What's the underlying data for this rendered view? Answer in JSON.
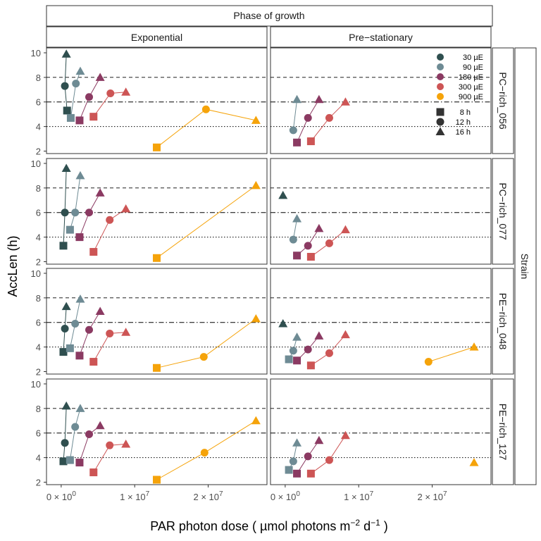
{
  "chart_data": {
    "type": "scatter",
    "xlabel_parts": {
      "pre": "PAR photon dose ( µmol photons  m",
      "exp1": "−2",
      "mid": "  d",
      "exp2": "−1",
      "post": " )"
    },
    "ylabel": "AccLen (h)",
    "facet_col_title": "Phase of growth",
    "facet_row_title": "Strain",
    "columns": [
      "Exponential",
      "Pre−stationary"
    ],
    "rows": [
      "PC−rich_056",
      "PC−rich_077",
      "PE−rich_048",
      "PE−rich_127"
    ],
    "xlim": [
      -2000000,
      28000000
    ],
    "ylim": [
      1.8,
      10.4
    ],
    "x_ticks": [
      0,
      10000000,
      20000000
    ],
    "x_tick_labels": [
      {
        "base": "0 × 10",
        "exp": "0"
      },
      {
        "base": "1 × 10",
        "exp": "7"
      },
      {
        "base": "2 × 10",
        "exp": "7"
      }
    ],
    "y_ticks": [
      2,
      4,
      6,
      8,
      10
    ],
    "reference_lines": [
      {
        "y": 8,
        "style": "dashed"
      },
      {
        "y": 6,
        "style": "dotdash"
      },
      {
        "y": 4,
        "style": "dotted"
      }
    ],
    "light_levels": [
      {
        "label": "30 µE",
        "color": "#2f4f4f"
      },
      {
        "label": "90 µE",
        "color": "#6e8b94"
      },
      {
        "label": "180 µE",
        "color": "#8b3a62"
      },
      {
        "label": "300 µE",
        "color": "#cd5555"
      },
      {
        "label": "900 µE",
        "color": "#f5a30a"
      }
    ],
    "photoperiods": [
      {
        "label": "8 h",
        "shape": "square"
      },
      {
        "label": "12 h",
        "shape": "circle"
      },
      {
        "label": "16 h",
        "shape": "triangle"
      }
    ],
    "legend_position": "top-right of first row, pre-stationary panel",
    "series": [
      {
        "row": 0,
        "col": 0,
        "points": [
          {
            "light": 0,
            "pp": 0,
            "x": 800000,
            "y": 5.3
          },
          {
            "light": 0,
            "pp": 1,
            "x": 500000,
            "y": 7.3
          },
          {
            "light": 0,
            "pp": 2,
            "x": 700000,
            "y": 9.9
          },
          {
            "light": 1,
            "pp": 0,
            "x": 1300000,
            "y": 4.7
          },
          {
            "light": 1,
            "pp": 1,
            "x": 2000000,
            "y": 7.5
          },
          {
            "light": 1,
            "pp": 2,
            "x": 2600000,
            "y": 8.5
          },
          {
            "light": 2,
            "pp": 0,
            "x": 2500000,
            "y": 4.5
          },
          {
            "light": 2,
            "pp": 1,
            "x": 3800000,
            "y": 6.4
          },
          {
            "light": 2,
            "pp": 2,
            "x": 5300000,
            "y": 8.0
          },
          {
            "light": 3,
            "pp": 0,
            "x": 4400000,
            "y": 4.8
          },
          {
            "light": 3,
            "pp": 1,
            "x": 6700000,
            "y": 6.7
          },
          {
            "light": 3,
            "pp": 2,
            "x": 8800000,
            "y": 6.8
          },
          {
            "light": 4,
            "pp": 0,
            "x": 13000000,
            "y": 2.3
          },
          {
            "light": 4,
            "pp": 1,
            "x": 19700000,
            "y": 5.4
          },
          {
            "light": 4,
            "pp": 2,
            "x": 26500000,
            "y": 4.5
          }
        ]
      },
      {
        "row": 0,
        "col": 1,
        "points": [
          {
            "light": 1,
            "pp": 1,
            "x": 1100000,
            "y": 3.7
          },
          {
            "light": 1,
            "pp": 2,
            "x": 1600000,
            "y": 6.2
          },
          {
            "light": 2,
            "pp": 0,
            "x": 1600000,
            "y": 2.7
          },
          {
            "light": 2,
            "pp": 1,
            "x": 3100000,
            "y": 4.7
          },
          {
            "light": 2,
            "pp": 2,
            "x": 4600000,
            "y": 6.2
          },
          {
            "light": 3,
            "pp": 0,
            "x": 3500000,
            "y": 2.8
          },
          {
            "light": 3,
            "pp": 1,
            "x": 6000000,
            "y": 4.7
          },
          {
            "light": 3,
            "pp": 2,
            "x": 8200000,
            "y": 6.0
          }
        ]
      },
      {
        "row": 1,
        "col": 0,
        "points": [
          {
            "light": 0,
            "pp": 0,
            "x": 300000,
            "y": 3.3
          },
          {
            "light": 0,
            "pp": 1,
            "x": 500000,
            "y": 6.0
          },
          {
            "light": 0,
            "pp": 2,
            "x": 700000,
            "y": 9.6
          },
          {
            "light": 1,
            "pp": 0,
            "x": 1200000,
            "y": 4.6
          },
          {
            "light": 1,
            "pp": 1,
            "x": 1900000,
            "y": 6.0
          },
          {
            "light": 1,
            "pp": 2,
            "x": 2600000,
            "y": 9.0
          },
          {
            "light": 2,
            "pp": 0,
            "x": 2500000,
            "y": 4.0
          },
          {
            "light": 2,
            "pp": 1,
            "x": 3800000,
            "y": 6.0
          },
          {
            "light": 2,
            "pp": 2,
            "x": 5300000,
            "y": 7.6
          },
          {
            "light": 3,
            "pp": 0,
            "x": 4400000,
            "y": 2.8
          },
          {
            "light": 3,
            "pp": 1,
            "x": 6600000,
            "y": 5.4
          },
          {
            "light": 3,
            "pp": 2,
            "x": 8800000,
            "y": 6.3
          },
          {
            "light": 4,
            "pp": 0,
            "x": 13000000,
            "y": 2.3
          },
          {
            "light": 4,
            "pp": 2,
            "x": 26500000,
            "y": 8.2
          }
        ]
      },
      {
        "row": 1,
        "col": 1,
        "points": [
          {
            "light": 0,
            "pp": 2,
            "x": -300000,
            "y": 7.4
          },
          {
            "light": 1,
            "pp": 1,
            "x": 1100000,
            "y": 3.8
          },
          {
            "light": 1,
            "pp": 2,
            "x": 1600000,
            "y": 5.5
          },
          {
            "light": 2,
            "pp": 0,
            "x": 1600000,
            "y": 2.5
          },
          {
            "light": 2,
            "pp": 1,
            "x": 3100000,
            "y": 3.3
          },
          {
            "light": 2,
            "pp": 2,
            "x": 4600000,
            "y": 4.7
          },
          {
            "light": 3,
            "pp": 0,
            "x": 3500000,
            "y": 2.4
          },
          {
            "light": 3,
            "pp": 1,
            "x": 6000000,
            "y": 3.5
          },
          {
            "light": 3,
            "pp": 2,
            "x": 8200000,
            "y": 4.6
          }
        ]
      },
      {
        "row": 2,
        "col": 0,
        "points": [
          {
            "light": 0,
            "pp": 0,
            "x": 300000,
            "y": 3.6
          },
          {
            "light": 0,
            "pp": 1,
            "x": 500000,
            "y": 5.5
          },
          {
            "light": 0,
            "pp": 2,
            "x": 700000,
            "y": 7.3
          },
          {
            "light": 1,
            "pp": 0,
            "x": 1200000,
            "y": 3.9
          },
          {
            "light": 1,
            "pp": 1,
            "x": 1900000,
            "y": 5.9
          },
          {
            "light": 1,
            "pp": 2,
            "x": 2600000,
            "y": 7.9
          },
          {
            "light": 2,
            "pp": 0,
            "x": 2500000,
            "y": 3.3
          },
          {
            "light": 2,
            "pp": 1,
            "x": 3800000,
            "y": 5.4
          },
          {
            "light": 2,
            "pp": 2,
            "x": 5300000,
            "y": 6.9
          },
          {
            "light": 3,
            "pp": 0,
            "x": 4400000,
            "y": 2.8
          },
          {
            "light": 3,
            "pp": 1,
            "x": 6600000,
            "y": 5.1
          },
          {
            "light": 3,
            "pp": 2,
            "x": 8800000,
            "y": 5.2
          },
          {
            "light": 4,
            "pp": 0,
            "x": 13000000,
            "y": 2.3
          },
          {
            "light": 4,
            "pp": 1,
            "x": 19400000,
            "y": 3.2
          },
          {
            "light": 4,
            "pp": 2,
            "x": 26500000,
            "y": 6.3
          }
        ]
      },
      {
        "row": 2,
        "col": 1,
        "points": [
          {
            "light": 0,
            "pp": 2,
            "x": -300000,
            "y": 5.9
          },
          {
            "light": 1,
            "pp": 0,
            "x": 500000,
            "y": 3.0
          },
          {
            "light": 1,
            "pp": 1,
            "x": 1100000,
            "y": 3.7
          },
          {
            "light": 1,
            "pp": 2,
            "x": 1600000,
            "y": 4.8
          },
          {
            "light": 2,
            "pp": 0,
            "x": 1600000,
            "y": 2.9
          },
          {
            "light": 2,
            "pp": 1,
            "x": 3100000,
            "y": 3.8
          },
          {
            "light": 2,
            "pp": 2,
            "x": 4600000,
            "y": 4.9
          },
          {
            "light": 3,
            "pp": 0,
            "x": 3500000,
            "y": 2.5
          },
          {
            "light": 3,
            "pp": 1,
            "x": 6000000,
            "y": 3.5
          },
          {
            "light": 3,
            "pp": 2,
            "x": 8200000,
            "y": 5.0
          },
          {
            "light": 4,
            "pp": 1,
            "x": 19500000,
            "y": 2.8
          },
          {
            "light": 4,
            "pp": 2,
            "x": 25700000,
            "y": 4.0
          }
        ]
      },
      {
        "row": 3,
        "col": 0,
        "points": [
          {
            "light": 0,
            "pp": 0,
            "x": 300000,
            "y": 3.7
          },
          {
            "light": 0,
            "pp": 1,
            "x": 500000,
            "y": 5.2
          },
          {
            "light": 0,
            "pp": 2,
            "x": 700000,
            "y": 8.2
          },
          {
            "light": 1,
            "pp": 0,
            "x": 1200000,
            "y": 3.8
          },
          {
            "light": 1,
            "pp": 1,
            "x": 1900000,
            "y": 6.5
          },
          {
            "light": 1,
            "pp": 2,
            "x": 2600000,
            "y": 8.0
          },
          {
            "light": 2,
            "pp": 0,
            "x": 2500000,
            "y": 3.6
          },
          {
            "light": 2,
            "pp": 1,
            "x": 3800000,
            "y": 5.9
          },
          {
            "light": 2,
            "pp": 2,
            "x": 5300000,
            "y": 6.6
          },
          {
            "light": 3,
            "pp": 0,
            "x": 4400000,
            "y": 2.8
          },
          {
            "light": 3,
            "pp": 1,
            "x": 6600000,
            "y": 5.0
          },
          {
            "light": 3,
            "pp": 2,
            "x": 8800000,
            "y": 5.1
          },
          {
            "light": 4,
            "pp": 0,
            "x": 13000000,
            "y": 2.2
          },
          {
            "light": 4,
            "pp": 1,
            "x": 19500000,
            "y": 4.4
          },
          {
            "light": 4,
            "pp": 2,
            "x": 26500000,
            "y": 7.0
          }
        ]
      },
      {
        "row": 3,
        "col": 1,
        "points": [
          {
            "light": 1,
            "pp": 0,
            "x": 500000,
            "y": 3.0
          },
          {
            "light": 1,
            "pp": 1,
            "x": 1100000,
            "y": 3.7
          },
          {
            "light": 1,
            "pp": 2,
            "x": 1600000,
            "y": 5.2
          },
          {
            "light": 2,
            "pp": 0,
            "x": 1600000,
            "y": 2.7
          },
          {
            "light": 2,
            "pp": 1,
            "x": 3100000,
            "y": 4.1
          },
          {
            "light": 2,
            "pp": 2,
            "x": 4600000,
            "y": 5.4
          },
          {
            "light": 3,
            "pp": 0,
            "x": 3500000,
            "y": 2.7
          },
          {
            "light": 3,
            "pp": 1,
            "x": 6000000,
            "y": 3.8
          },
          {
            "light": 3,
            "pp": 2,
            "x": 8200000,
            "y": 5.8
          },
          {
            "light": 4,
            "pp": 2,
            "x": 25700000,
            "y": 3.6
          }
        ]
      }
    ]
  }
}
